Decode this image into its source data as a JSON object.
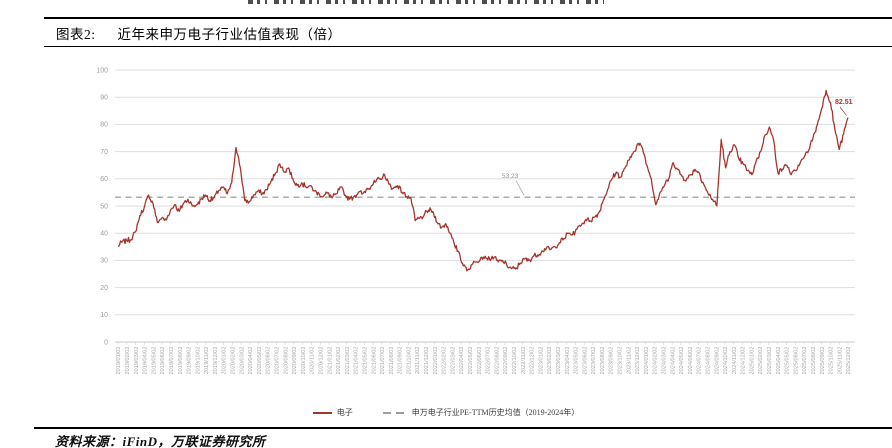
{
  "header": {
    "tag": "图表2:",
    "title": "近年来申万电子行业估值表现（倍）"
  },
  "source": {
    "label": "资料来源：iFinD，万联证券研究所"
  },
  "legend": [
    {
      "label": "电子",
      "type": "line",
      "color": "#A5342D"
    },
    {
      "label": "申万电子行业PE-TTM历史均值（2019-2024年）",
      "type": "dash",
      "color": "#9E9E9E"
    }
  ],
  "chart_data": {
    "type": "line",
    "title": "近年来申万电子行业估值表现（倍）",
    "xlabel": "",
    "ylabel": "",
    "ylim": [
      0,
      100
    ],
    "ytick_step": 10,
    "grid": true,
    "legend_position": "bottom",
    "x_labels": [
      "2019/01/02",
      "2019/02/02",
      "2019/03/02",
      "2019/04/02",
      "2019/05/02",
      "2019/06/02",
      "2019/07/02",
      "2019/08/02",
      "2019/09/02",
      "2019/10/02",
      "2019/11/02",
      "2019/12/02",
      "2020/01/02",
      "2020/02/02",
      "2020/03/02",
      "2020/04/02",
      "2020/05/02",
      "2020/06/02",
      "2020/07/02",
      "2020/08/02",
      "2020/09/02",
      "2020/10/02",
      "2020/11/02",
      "2020/12/02",
      "2021/01/02",
      "2021/02/02",
      "2021/03/02",
      "2021/04/02",
      "2021/05/02",
      "2021/06/02",
      "2021/07/02",
      "2021/08/02",
      "2021/09/02",
      "2021/10/02",
      "2021/11/02",
      "2021/12/02",
      "2022/01/02",
      "2022/02/02",
      "2022/03/02",
      "2022/04/02",
      "2022/05/02",
      "2022/06/02",
      "2022/07/02",
      "2022/08/02",
      "2022/09/02",
      "2022/10/02",
      "2022/11/02",
      "2022/12/02",
      "2023/01/02",
      "2023/02/02",
      "2023/03/02",
      "2023/04/02",
      "2023/05/02",
      "2023/06/02",
      "2023/07/02",
      "2023/08/02",
      "2023/09/02",
      "2023/10/02",
      "2023/11/02",
      "2023/12/02",
      "2024/01/02",
      "2024/02/02",
      "2024/03/02",
      "2024/04/02",
      "2024/05/02",
      "2024/06/02",
      "2024/07/02",
      "2024/08/02",
      "2024/09/02",
      "2024/10/02",
      "2024/11/02",
      "2024/12/02",
      "2025/01/02",
      "2025/02/02",
      "2025/03/02",
      "2025/04/02",
      "2025/05/02",
      "2025/06/02",
      "2025/07/02",
      "2025/08/02",
      "2025/09/02",
      "2025/10/02",
      "2025/11/02",
      "2025/12/02"
    ],
    "series": [
      {
        "name": "电子",
        "color": "#A5342D",
        "points_per_month": 2,
        "values": [
          35.2,
          36.8,
          37.3,
          37.6,
          40.5,
          46.5,
          49.5,
          54.0,
          51.0,
          44.0,
          45.5,
          44.8,
          48.5,
          50.5,
          48.0,
          51.0,
          52.5,
          50.0,
          50.5,
          52.5,
          54.0,
          52.0,
          53.0,
          55.5,
          57.0,
          54.5,
          58.5,
          71.5,
          64.0,
          52.0,
          51.5,
          54.0,
          55.5,
          54.5,
          56.0,
          59.0,
          62.0,
          65.5,
          62.5,
          64.0,
          60.0,
          57.5,
          58.5,
          57.0,
          57.5,
          55.5,
          54.5,
          53.5,
          55.0,
          53.0,
          54.5,
          57.0,
          54.0,
          52.5,
          53.5,
          55.0,
          54.5,
          56.5,
          57.5,
          59.0,
          60.0,
          61.5,
          58.0,
          56.5,
          57.5,
          55.0,
          53.5,
          53.0,
          44.6,
          45.5,
          46.5,
          48.5,
          48.0,
          44.0,
          42.0,
          43.5,
          40.0,
          35.5,
          33.0,
          28.0,
          26.5,
          28.5,
          29.5,
          31.0,
          31.5,
          30.5,
          31.0,
          29.5,
          30.0,
          28.0,
          27.0,
          26.8,
          29.0,
          30.5,
          30.0,
          31.5,
          32.0,
          33.5,
          34.5,
          34.0,
          35.0,
          36.5,
          38.0,
          40.0,
          39.5,
          41.5,
          43.0,
          45.0,
          44.5,
          46.0,
          47.5,
          52.0,
          56.0,
          60.0,
          62.5,
          60.5,
          64.0,
          67.0,
          70.0,
          73.0,
          71.0,
          65.0,
          60.0,
          50.5,
          55.0,
          57.5,
          60.0,
          66.0,
          63.5,
          61.0,
          59.5,
          61.5,
          63.5,
          62.0,
          58.0,
          54.5,
          52.5,
          50.0,
          74.5,
          64.0,
          70.0,
          72.5,
          67.5,
          65.5,
          63.0,
          61.5,
          66.5,
          70.0,
          76.0,
          79.0,
          74.0,
          62.0,
          63.5,
          65.0,
          61.5,
          63.0,
          65.5,
          68.0,
          70.5,
          75.0,
          80.0,
          86.0,
          92.5,
          88.0,
          78.0,
          70.8,
          76.5,
          82.51
        ]
      }
    ],
    "mean_line": {
      "name": "申万电子行业PE-TTM历史均值（2019-2024年）",
      "value": 53.23,
      "label": "53.23",
      "color": "#ADADAD"
    },
    "end_label": {
      "text": "82.51",
      "value": 82.51
    }
  }
}
